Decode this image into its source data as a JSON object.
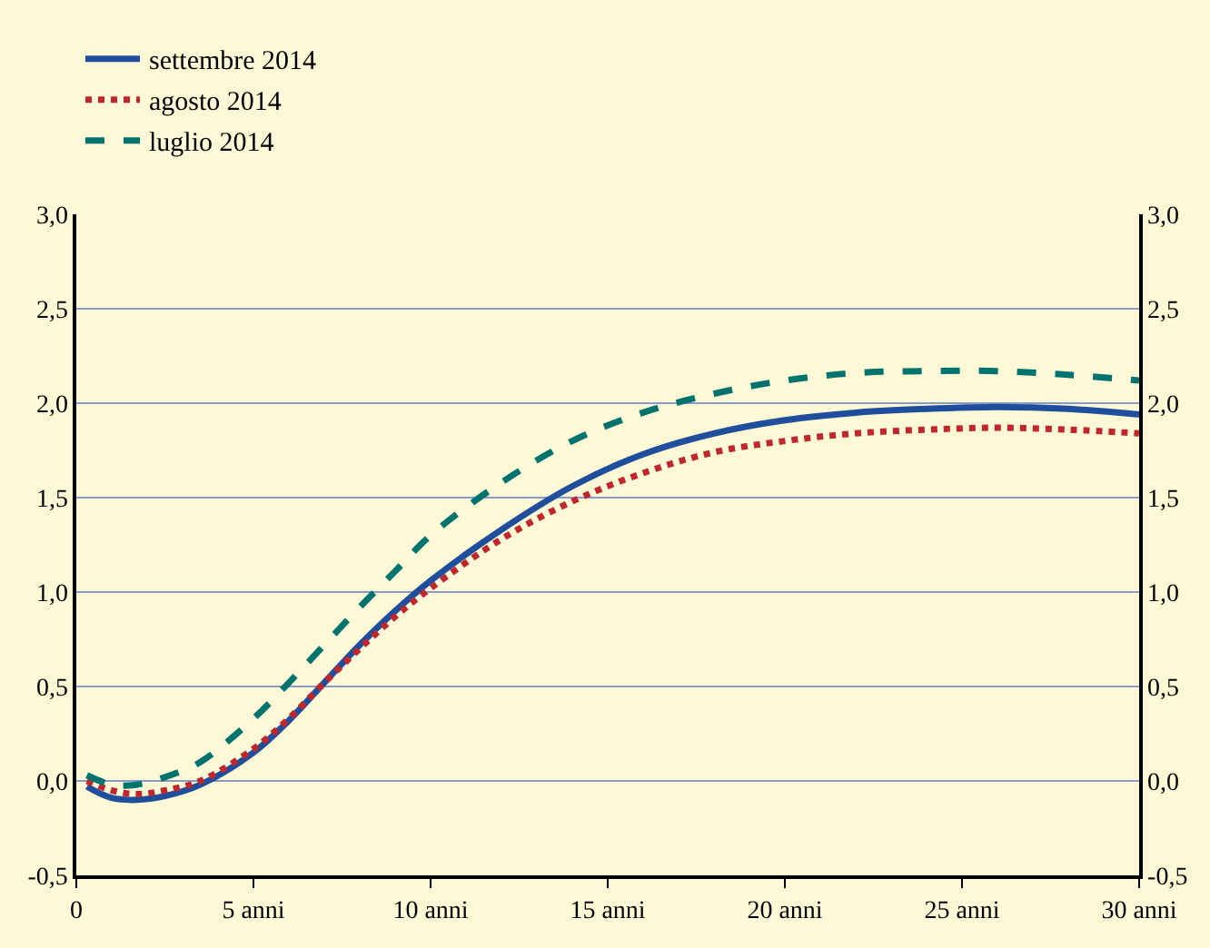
{
  "chart_data": {
    "type": "line",
    "x": [
      0.3,
      1,
      1.7,
      2.5,
      3.5,
      5,
      6,
      7,
      8,
      9,
      10,
      12,
      14,
      16,
      18,
      20,
      22,
      24,
      26,
      28,
      30
    ],
    "series": [
      {
        "name": "settembre 2014",
        "color": "#1f4e9c",
        "line_style": "solid",
        "values": [
          -0.03,
          -0.09,
          -0.1,
          -0.08,
          -0.02,
          0.15,
          0.32,
          0.52,
          0.72,
          0.9,
          1.06,
          1.33,
          1.56,
          1.73,
          1.84,
          1.91,
          1.95,
          1.97,
          1.98,
          1.97,
          1.94
        ]
      },
      {
        "name": "agosto 2014",
        "color": "#c0272d",
        "line_style": "dotted",
        "values": [
          0.0,
          -0.05,
          -0.07,
          -0.05,
          0.0,
          0.17,
          0.33,
          0.52,
          0.7,
          0.87,
          1.02,
          1.28,
          1.48,
          1.63,
          1.74,
          1.8,
          1.84,
          1.86,
          1.87,
          1.86,
          1.84
        ]
      },
      {
        "name": "luglio 2014",
        "color": "#00736e",
        "line_style": "dashed",
        "values": [
          0.03,
          -0.02,
          -0.02,
          0.02,
          0.1,
          0.33,
          0.52,
          0.72,
          0.92,
          1.11,
          1.3,
          1.58,
          1.8,
          1.95,
          2.05,
          2.12,
          2.16,
          2.17,
          2.17,
          2.15,
          2.12
        ]
      }
    ],
    "xlim": [
      0,
      30
    ],
    "xticks": [
      0,
      {
        "value": 5,
        "label": "5 anni"
      },
      {
        "value": 10,
        "label": "10 anni"
      },
      {
        "value": 15,
        "label": "15 anni"
      },
      {
        "value": 20,
        "label": "20 anni"
      },
      {
        "value": 25,
        "label": "25 anni"
      },
      {
        "value": 30,
        "label": "30 anni"
      }
    ],
    "ylim": [
      -0.5,
      3.0
    ],
    "yticks": [
      {
        "value": -0.5,
        "label": "-0,5"
      },
      {
        "value": 0.0,
        "label": "0,0"
      },
      {
        "value": 0.5,
        "label": "0,5"
      },
      {
        "value": 1.0,
        "label": "1,0"
      },
      {
        "value": 1.5,
        "label": "1,5"
      },
      {
        "value": 2.0,
        "label": "2,0"
      },
      {
        "value": 2.5,
        "label": "2,5"
      },
      {
        "value": 3.0,
        "label": "3,0"
      }
    ],
    "y2lim": [
      -0.5,
      3.0
    ],
    "y2ticks": [
      {
        "value": -0.5,
        "label": "-0,5"
      },
      {
        "value": 0.0,
        "label": "0,0"
      },
      {
        "value": 0.5,
        "label": "0,5"
      },
      {
        "value": 1.0,
        "label": "1,0"
      },
      {
        "value": 1.5,
        "label": "1,5"
      },
      {
        "value": 2.0,
        "label": "2,0"
      },
      {
        "value": 2.5,
        "label": "2,5"
      },
      {
        "value": 3.0,
        "label": "3,0"
      }
    ],
    "grid": "y",
    "legend": "top left"
  }
}
